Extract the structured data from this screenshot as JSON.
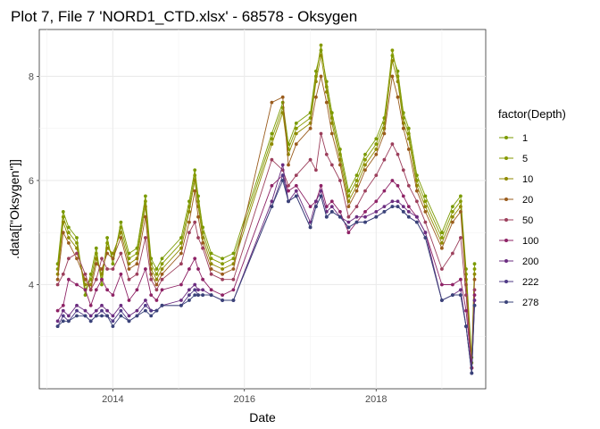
{
  "chart_data": {
    "type": "line",
    "title": "Plot 7, File 7 'NORD1_CTD.xlsx' - 68578  -  Oksygen",
    "xlabel": "Date",
    "ylabel": ".data[[\"Oksygen\"]]",
    "x_ticks": [
      "2014",
      "2016",
      "2018"
    ],
    "y_ticks": [
      "4",
      "6",
      "8"
    ],
    "xlim": [
      "2012-11-19",
      "2019-09-01"
    ],
    "ylim": [
      2.0,
      8.9
    ],
    "grid": true,
    "legend_title": "factor(Depth)",
    "legend_position": "right",
    "x": [
      "2013-03-01",
      "2013-04-01",
      "2013-05-01",
      "2013-06-15",
      "2013-08-01",
      "2013-09-01",
      "2013-10-01",
      "2013-11-01",
      "2013-12-01",
      "2014-01-01",
      "2014-02-15",
      "2014-04-01",
      "2014-05-15",
      "2014-07-01",
      "2014-08-01",
      "2014-09-01",
      "2014-10-01",
      "2015-01-15",
      "2015-03-01",
      "2015-04-01",
      "2015-04-20",
      "2015-05-15",
      "2015-07-01",
      "2015-09-01",
      "2015-11-01",
      "2016-06-01",
      "2016-08-01",
      "2016-09-01",
      "2016-10-15",
      "2017-01-01",
      "2017-02-01",
      "2017-03-01",
      "2017-04-01",
      "2017-05-01",
      "2017-06-15",
      "2017-08-01",
      "2017-09-15",
      "2017-11-01",
      "2018-01-01",
      "2018-02-15",
      "2018-04-01",
      "2018-05-01",
      "2018-06-01",
      "2018-07-01",
      "2018-08-15",
      "2018-10-01",
      "2019-01-01",
      "2019-03-01",
      "2019-04-15",
      "2019-05-15",
      "2019-06-15",
      "2019-07-01"
    ],
    "series": [
      {
        "name": "1",
        "color": "#7a9a01",
        "values": [
          4.4,
          5.4,
          5.1,
          4.9,
          3.8,
          4.2,
          4.7,
          4.0,
          4.9,
          4.4,
          5.2,
          4.6,
          4.7,
          5.7,
          4.5,
          4.3,
          4.5,
          4.9,
          5.6,
          6.2,
          5.7,
          5.1,
          4.6,
          4.5,
          4.6,
          6.9,
          7.5,
          6.7,
          7.1,
          7.3,
          8.1,
          8.5,
          7.9,
          7.3,
          6.6,
          5.8,
          6.1,
          6.5,
          6.8,
          7.2,
          8.4,
          8.1,
          7.3,
          7.0,
          6.1,
          5.7,
          5.0,
          5.5,
          5.7,
          4.3,
          2.6,
          4.4
        ]
      },
      {
        "name": "5",
        "color": "#869a00",
        "values": [
          4.3,
          5.3,
          5.0,
          4.8,
          3.9,
          4.1,
          4.6,
          4.1,
          4.8,
          4.5,
          5.1,
          4.5,
          4.6,
          5.6,
          4.4,
          4.2,
          4.4,
          4.8,
          5.5,
          6.1,
          5.6,
          5.0,
          4.5,
          4.4,
          4.5,
          6.8,
          7.4,
          6.6,
          7.0,
          7.2,
          8.0,
          8.6,
          7.8,
          7.2,
          6.5,
          5.7,
          6.0,
          6.4,
          6.7,
          7.1,
          8.5,
          8.0,
          7.2,
          6.9,
          6.0,
          5.6,
          4.9,
          5.4,
          5.6,
          4.2,
          2.5,
          4.3
        ]
      },
      {
        "name": "10",
        "color": "#8f8a00",
        "values": [
          4.2,
          5.2,
          4.9,
          4.7,
          4.0,
          4.0,
          4.5,
          4.2,
          4.7,
          4.6,
          5.0,
          4.4,
          4.5,
          5.5,
          4.3,
          4.1,
          4.3,
          4.7,
          5.4,
          6.0,
          5.5,
          4.9,
          4.4,
          4.3,
          4.4,
          6.7,
          7.3,
          6.5,
          6.9,
          7.1,
          7.9,
          8.4,
          7.7,
          7.1,
          6.4,
          5.6,
          5.9,
          6.3,
          6.6,
          7.0,
          8.3,
          7.9,
          7.1,
          6.8,
          5.9,
          5.5,
          4.8,
          5.3,
          5.5,
          4.1,
          2.4,
          4.2
        ]
      },
      {
        "name": "20",
        "color": "#9a5c1d",
        "values": [
          4.1,
          5.0,
          4.8,
          4.5,
          4.1,
          3.9,
          4.4,
          4.3,
          4.6,
          4.5,
          4.9,
          4.3,
          4.4,
          5.3,
          4.2,
          4.0,
          4.2,
          4.6,
          5.2,
          5.8,
          5.3,
          4.8,
          4.3,
          4.2,
          4.3,
          7.5,
          7.6,
          6.3,
          6.7,
          7.0,
          7.6,
          8.0,
          7.5,
          6.9,
          6.3,
          5.5,
          5.8,
          6.2,
          6.5,
          6.9,
          8.0,
          7.6,
          7.0,
          6.6,
          5.8,
          5.4,
          4.7,
          5.2,
          5.4,
          4.0,
          2.4,
          4.1
        ]
      },
      {
        "name": "50",
        "color": "#9c3f5c",
        "values": [
          4.0,
          4.2,
          4.5,
          4.6,
          4.2,
          3.9,
          4.1,
          4.5,
          4.3,
          4.3,
          4.6,
          4.1,
          4.2,
          4.9,
          4.1,
          3.9,
          4.1,
          4.4,
          5.0,
          5.2,
          4.9,
          4.7,
          4.2,
          4.1,
          4.1,
          6.4,
          6.2,
          5.9,
          6.1,
          6.4,
          6.2,
          6.9,
          6.5,
          6.3,
          6.0,
          5.3,
          5.5,
          5.8,
          6.1,
          6.4,
          6.7,
          6.5,
          6.2,
          5.9,
          5.6,
          5.2,
          4.3,
          4.6,
          4.9,
          3.8,
          2.4,
          3.9
        ]
      },
      {
        "name": "100",
        "color": "#8e2366",
        "values": [
          3.5,
          3.6,
          4.1,
          4.0,
          3.9,
          3.6,
          3.9,
          4.1,
          3.9,
          3.8,
          4.2,
          3.7,
          3.9,
          4.3,
          3.8,
          3.7,
          3.9,
          4.0,
          4.3,
          4.5,
          4.3,
          4.1,
          3.9,
          3.8,
          3.9,
          5.9,
          6.1,
          5.8,
          5.9,
          5.5,
          5.6,
          5.9,
          5.5,
          5.6,
          5.4,
          5.0,
          5.2,
          5.4,
          5.6,
          5.8,
          6.0,
          5.9,
          5.7,
          5.5,
          5.3,
          5.0,
          4.0,
          4.0,
          4.1,
          3.5,
          2.4,
          3.8
        ]
      },
      {
        "name": "200",
        "color": "#6b2d80",
        "values": [
          3.3,
          3.5,
          3.4,
          3.6,
          3.5,
          3.4,
          3.5,
          3.6,
          3.5,
          3.4,
          3.6,
          3.4,
          3.5,
          3.7,
          3.5,
          3.5,
          3.6,
          3.7,
          3.9,
          4.0,
          3.9,
          3.9,
          3.8,
          3.7,
          3.7,
          5.6,
          6.3,
          5.6,
          5.8,
          5.2,
          5.6,
          5.8,
          5.4,
          5.5,
          5.3,
          5.2,
          5.3,
          5.3,
          5.4,
          5.5,
          5.6,
          5.6,
          5.5,
          5.4,
          5.3,
          5.0,
          3.7,
          3.8,
          3.9,
          3.2,
          2.3,
          3.7
        ]
      },
      {
        "name": "222",
        "color": "#4f3a86",
        "values": [
          3.2,
          3.4,
          3.3,
          3.5,
          3.4,
          3.3,
          3.4,
          3.5,
          3.4,
          3.3,
          3.5,
          3.3,
          3.4,
          3.6,
          3.5,
          3.5,
          3.6,
          3.6,
          3.8,
          3.9,
          3.8,
          3.8,
          3.8,
          3.7,
          3.7,
          5.5,
          6.1,
          5.6,
          5.7,
          5.1,
          5.5,
          5.7,
          5.3,
          5.4,
          5.3,
          5.1,
          5.2,
          5.2,
          5.3,
          5.4,
          5.5,
          5.5,
          5.4,
          5.3,
          5.2,
          4.9,
          3.7,
          3.8,
          3.8,
          3.2,
          2.3,
          3.6
        ]
      },
      {
        "name": "278",
        "color": "#3a4379",
        "values": [
          3.2,
          3.3,
          3.3,
          3.4,
          3.4,
          3.3,
          3.4,
          3.4,
          3.4,
          3.2,
          3.4,
          3.3,
          3.4,
          3.5,
          3.4,
          3.5,
          3.6,
          3.6,
          3.7,
          3.8,
          3.8,
          3.8,
          3.8,
          3.7,
          3.7,
          5.5,
          6.0,
          5.6,
          5.7,
          5.1,
          5.5,
          5.7,
          5.3,
          5.4,
          5.3,
          5.1,
          5.2,
          5.2,
          5.3,
          5.4,
          5.5,
          5.5,
          5.4,
          5.3,
          5.2,
          4.9,
          3.7,
          3.8,
          3.8,
          3.2,
          2.3,
          3.6
        ]
      }
    ]
  }
}
